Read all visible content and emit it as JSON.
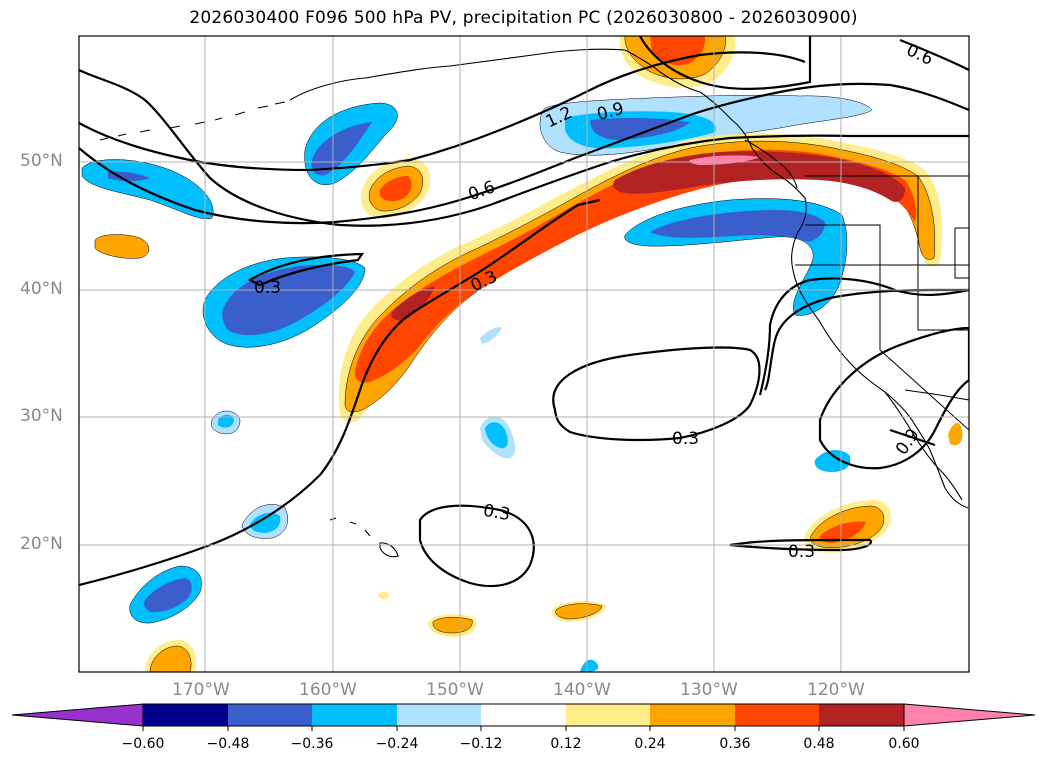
{
  "title": "2026030400 F096 500 hPa PV, precipitation PC (2026030800 - 2026030900)",
  "lat_labels": [
    "50°N",
    "40°N",
    "30°N",
    "20°N"
  ],
  "lon_labels": [
    "170°W",
    "160°W",
    "150°W",
    "140°W",
    "130°W",
    "120°W"
  ],
  "contour_labels": [
    "1.2",
    "0.9",
    "0.6",
    "0.6",
    "0.3",
    "0.3",
    "0.3",
    "0.3",
    "0.3",
    "0.9"
  ],
  "colorbar": {
    "tick_labels": [
      "−0.60",
      "−0.48",
      "−0.36",
      "−0.24",
      "−0.12",
      "0.12",
      "0.24",
      "0.36",
      "0.48",
      "0.60"
    ],
    "colors": [
      "#9932cc",
      "#00008b",
      "#3a5fcd",
      "#00bfff",
      "#b0e2ff",
      "#ffffff",
      "#ffec8b",
      "#ffa500",
      "#ff4500",
      "#b22222",
      "#ff82ab"
    ]
  },
  "colors": {
    "neg_light": "#b0e2ff",
    "neg_mid": "#00bfff",
    "neg_strong": "#3a5fcd",
    "neg_max": "#00008b",
    "pos_light": "#ffec8b",
    "pos_mid": "#ffa500",
    "pos_strong": "#ff4500",
    "pos_max": "#b22222",
    "pos_extreme": "#ff82ab"
  }
}
